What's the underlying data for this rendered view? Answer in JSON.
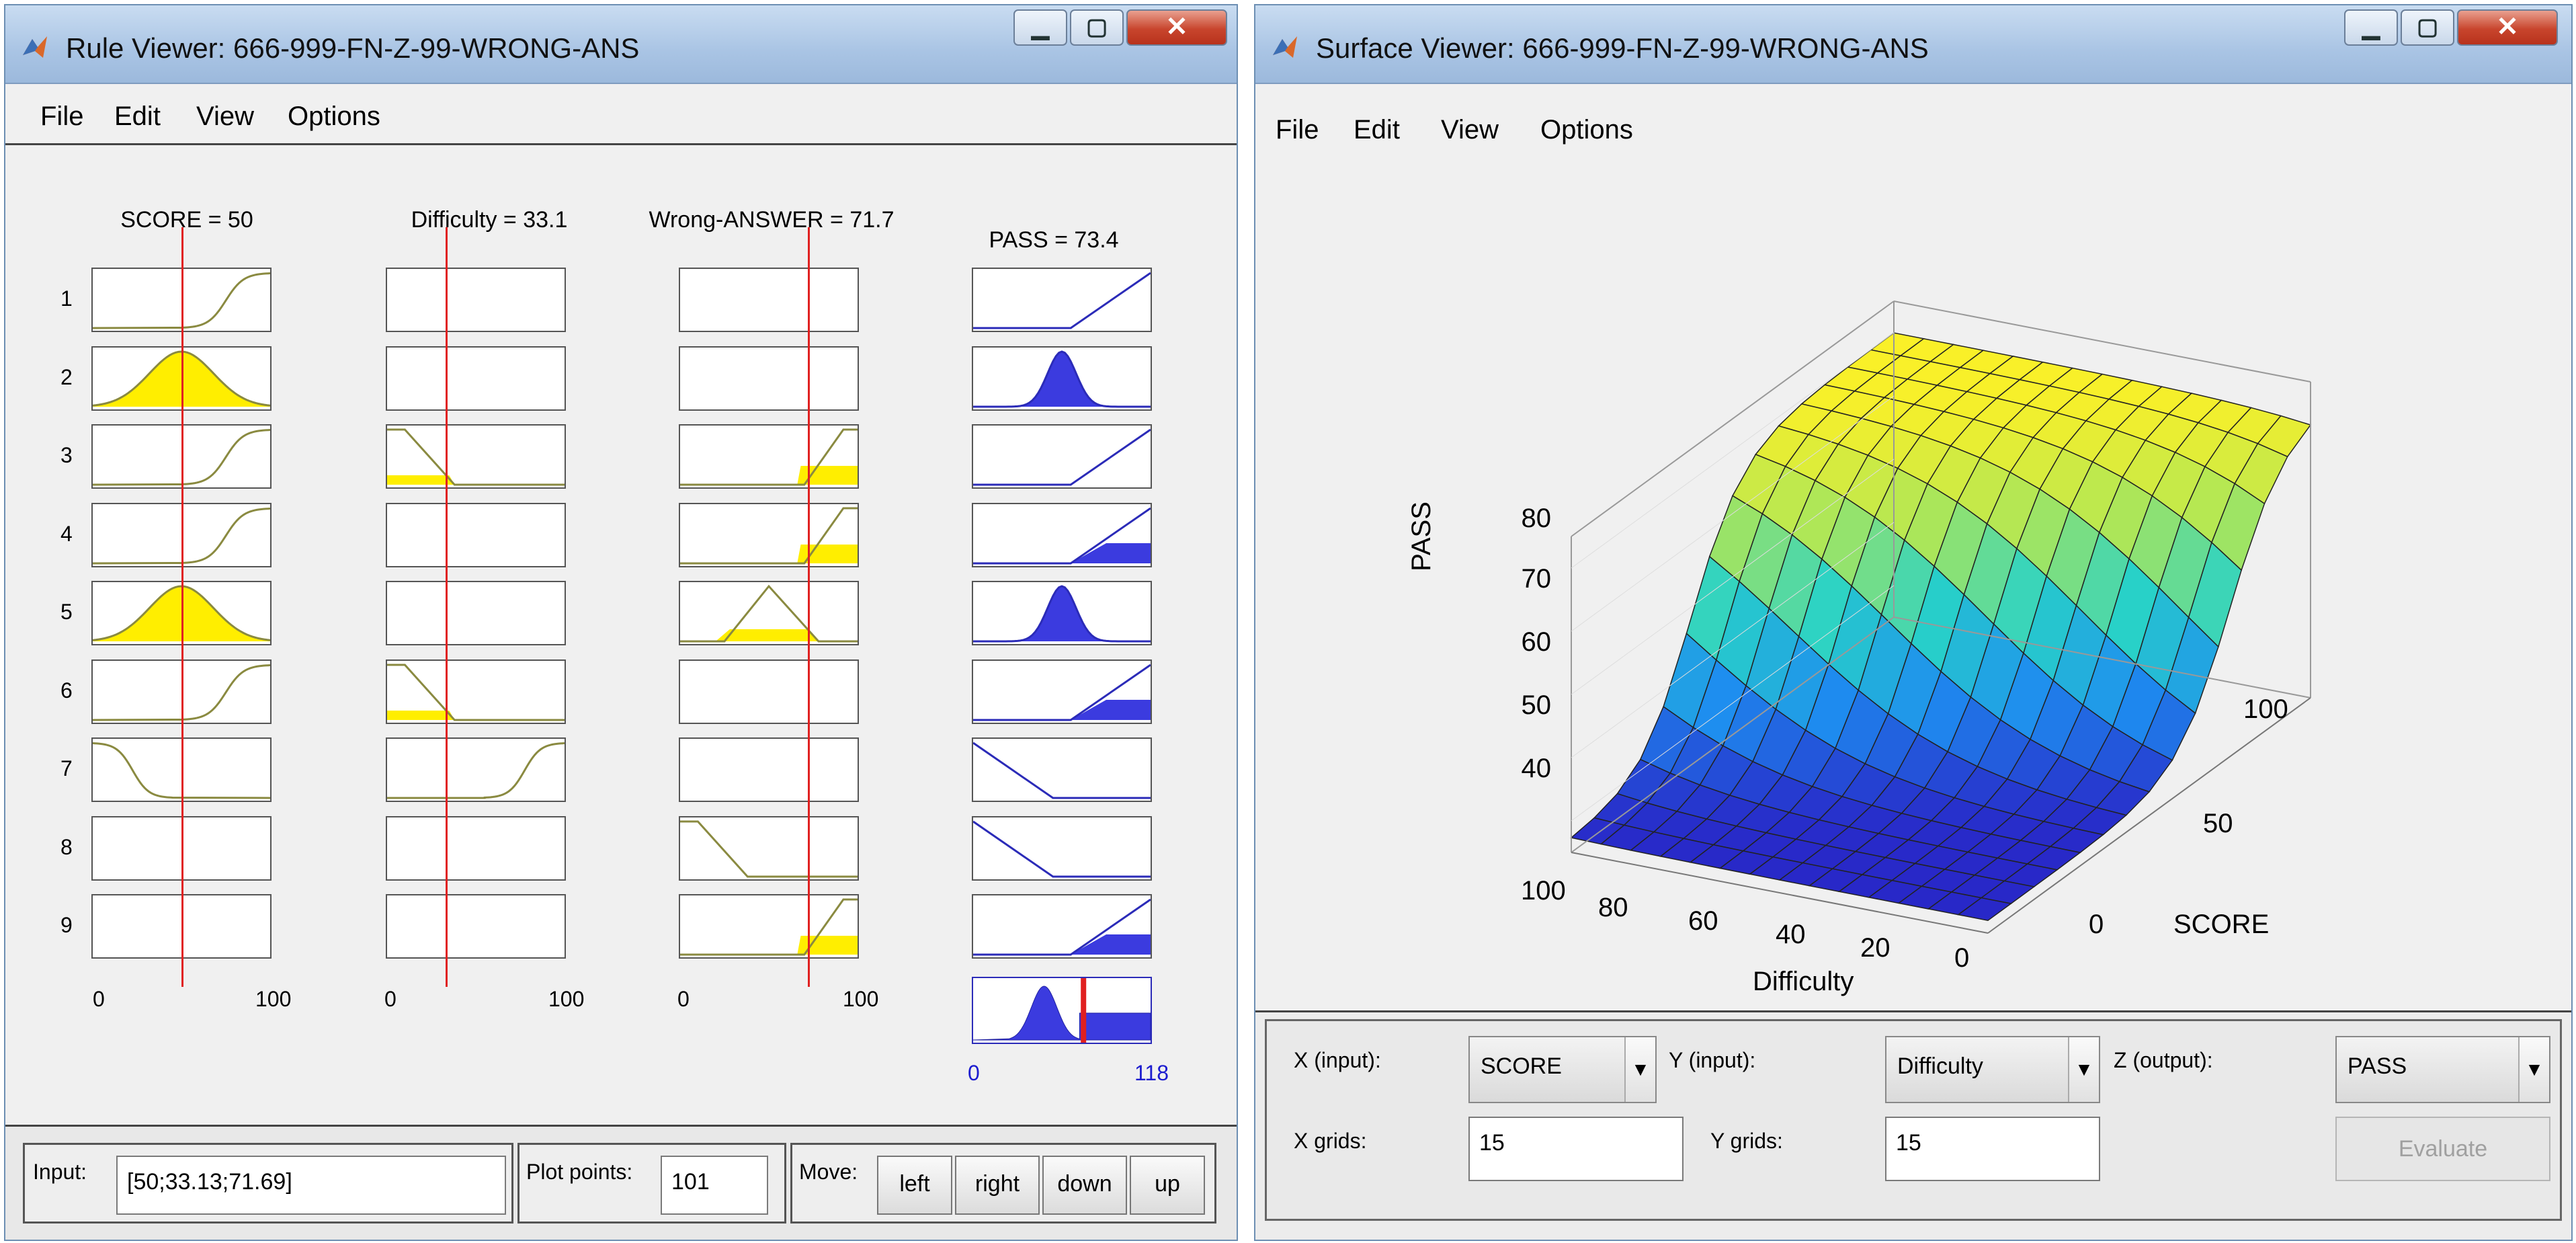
{
  "rule_viewer": {
    "title": "Rule Viewer: 666-999-FN-Z-99-WRONG-ANS",
    "menu": [
      "File",
      "Edit",
      "View",
      "Options"
    ],
    "inputs": [
      {
        "label": "SCORE = 50",
        "range_min": "0",
        "range_max": "100",
        "value_fraction": 0.5
      },
      {
        "label": "Difficulty = 33.1",
        "range_min": "0",
        "range_max": "100",
        "value_fraction": 0.331
      },
      {
        "label": "Wrong-ANSWER = 71.7",
        "range_min": "0",
        "range_max": "100",
        "value_fraction": 0.717
      }
    ],
    "output": {
      "label": "PASS = 73.4",
      "range_min": "0",
      "range_max": "118",
      "value_fraction": 0.622
    },
    "rule_numbers": [
      "1",
      "2",
      "3",
      "4",
      "5",
      "6",
      "7",
      "8",
      "9"
    ],
    "input_field": {
      "label": "Input:",
      "value": "[50;33.13;71.69]"
    },
    "plot_points": {
      "label": "Plot points:",
      "value": "101"
    },
    "move": {
      "label": "Move:",
      "buttons": [
        "left",
        "right",
        "down",
        "up"
      ]
    }
  },
  "surface_viewer": {
    "title": "Surface Viewer: 666-999-FN-Z-99-WRONG-ANS",
    "menu": [
      "File",
      "Edit",
      "View",
      "Options"
    ],
    "plot": {
      "zlabel": "PASS",
      "xlabel": "Difficulty",
      "ylabel": "SCORE",
      "z_ticks": [
        "80",
        "70",
        "60",
        "50",
        "40"
      ],
      "difficulty_ticks": [
        "100",
        "80",
        "60",
        "40",
        "20",
        "0"
      ],
      "score_ticks": [
        "100",
        "50",
        "0"
      ]
    },
    "controls": {
      "x_input_label": "X (input):",
      "x_input_value": "SCORE",
      "y_input_label": "Y (input):",
      "y_input_value": "Difficulty",
      "z_output_label": "Z (output):",
      "z_output_value": "PASS",
      "x_grids_label": "X grids:",
      "x_grids_value": "15",
      "y_grids_label": "Y grids:",
      "y_grids_value": "15",
      "evaluate_label": "Evaluate"
    }
  },
  "colors": {
    "yellow_fill": "#ffee00",
    "blue_fill": "#3b3bdf",
    "red_line": "#e02020"
  },
  "icons": [
    "matlab-icon",
    "minimize-icon",
    "maximize-icon",
    "close-icon",
    "dropdown-arrow-icon"
  ]
}
